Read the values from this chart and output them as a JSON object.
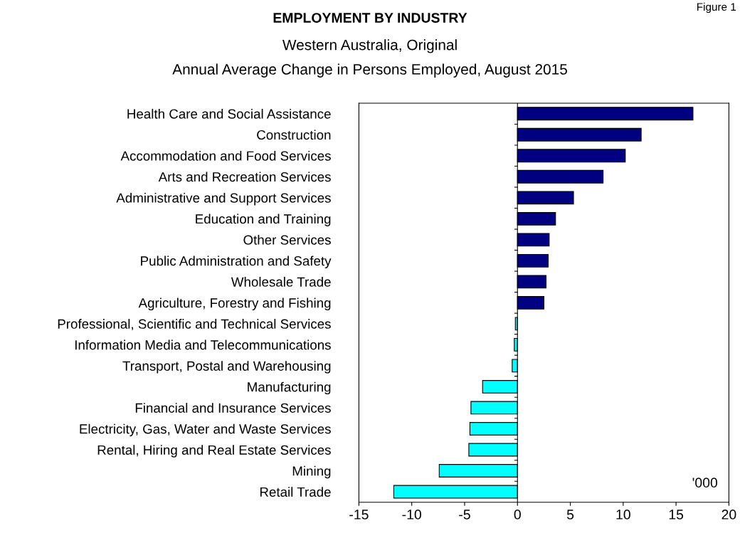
{
  "chart_data": {
    "type": "bar",
    "orientation": "horizontal",
    "title": "EMPLOYMENT BY INDUSTRY",
    "subtitle": "Western Australia, Original\nAnnual Average Change in Persons Employed, August 2015",
    "categories": [
      "Health Care and Social Assistance",
      "Construction",
      "Accommodation and Food Services",
      "Arts and Recreation Services",
      "Administrative and Support Services",
      "Education and Training",
      "Other Services",
      "Public Administration and Safety",
      "Wholesale Trade",
      "Agriculture, Forestry and Fishing",
      "Professional, Scientific and Technical Services",
      "Information Media and Telecommunications",
      "Transport, Postal and Warehousing",
      "Manufacturing",
      "Financial and Insurance Services",
      "Electricity, Gas, Water and Waste Services",
      "Rental, Hiring and Real Estate Services",
      "Mining",
      "Retail Trade"
    ],
    "values": [
      16.6,
      11.7,
      10.2,
      8.1,
      5.3,
      3.6,
      3.0,
      2.9,
      2.7,
      2.5,
      -0.2,
      -0.3,
      -0.5,
      -3.3,
      -4.4,
      -4.5,
      -4.6,
      -7.4,
      -11.7
    ],
    "colors": [
      "#000080",
      "#000080",
      "#000080",
      "#000080",
      "#000080",
      "#000080",
      "#000080",
      "#000080",
      "#000080",
      "#000080",
      "#00ffff",
      "#00ffff",
      "#00ffff",
      "#00ffff",
      "#00ffff",
      "#00ffff",
      "#00ffff",
      "#00ffff",
      "#00ffff"
    ],
    "xlim": [
      -15,
      20
    ],
    "xticks": [
      -15,
      -10,
      -5,
      0,
      5,
      10,
      15,
      20
    ],
    "annotations": [
      "'000",
      "Figure 1"
    ],
    "ref_lines": [
      {
        "axis": "x",
        "value": 0,
        "color": "#000000"
      }
    ]
  }
}
